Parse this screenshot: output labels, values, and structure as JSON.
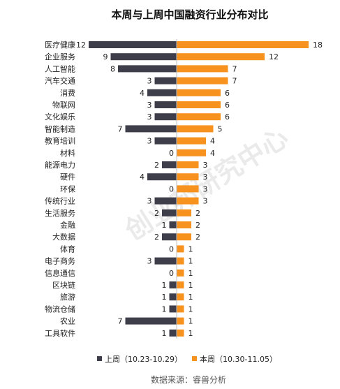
{
  "chart_data": {
    "type": "bar",
    "title": "本周与上周中国融资行业分布对比",
    "categories": [
      "医疗健康",
      "企业服务",
      "人工智能",
      "汽车交通",
      "消费",
      "物联网",
      "文化娱乐",
      "智能制造",
      "教育培训",
      "材料",
      "能源电力",
      "硬件",
      "环保",
      "传统行业",
      "生活服务",
      "金融",
      "大数据",
      "体育",
      "电子商务",
      "信息通信",
      "区块链",
      "旅游",
      "物流仓储",
      "农业",
      "工具软件"
    ],
    "series": [
      {
        "name": "上周（10.23-10.29）",
        "color": "#3e3e4a",
        "values": [
          12,
          9,
          8,
          3,
          4,
          3,
          3,
          7,
          3,
          0,
          2,
          4,
          0,
          3,
          2,
          1,
          2,
          0,
          3,
          0,
          1,
          1,
          1,
          7,
          1
        ]
      },
      {
        "name": "本周（10.30-11.05）",
        "color": "#f7921e",
        "values": [
          18,
          12,
          7,
          7,
          6,
          6,
          6,
          5,
          4,
          4,
          3,
          3,
          3,
          3,
          2,
          2,
          2,
          1,
          1,
          1,
          1,
          1,
          1,
          1,
          1
        ]
      }
    ],
    "legend_position": "bottom",
    "source": "数据来源：睿兽分析",
    "watermark": "创业邦研究中心"
  }
}
